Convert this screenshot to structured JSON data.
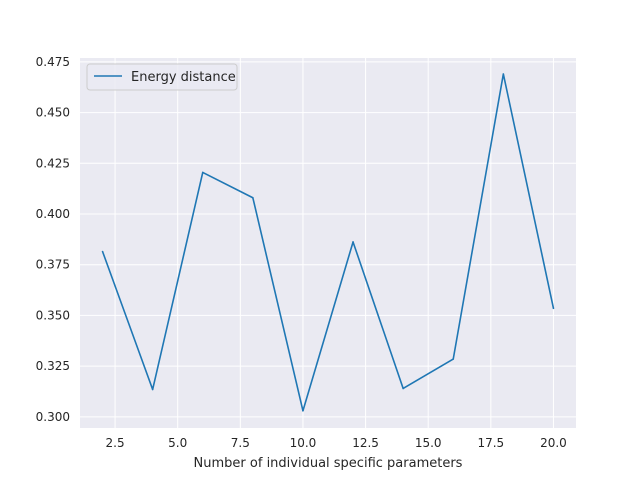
{
  "chart_data": {
    "type": "line",
    "title": "",
    "xlabel": "Number of individual specific parameters",
    "ylabel": "",
    "xlim": [
      1.1,
      20.9
    ],
    "ylim": [
      0.2945,
      0.4769
    ],
    "x_ticks": [
      2.5,
      5.0,
      7.5,
      10.0,
      12.5,
      15.0,
      17.5,
      20.0
    ],
    "x_tick_labels": [
      "2.5",
      "5.0",
      "7.5",
      "10.0",
      "12.5",
      "15.0",
      "17.5",
      "20.0"
    ],
    "y_ticks": [
      0.3,
      0.325,
      0.35,
      0.375,
      0.4,
      0.425,
      0.45,
      0.475
    ],
    "y_tick_labels": [
      "0.300",
      "0.325",
      "0.350",
      "0.375",
      "0.400",
      "0.425",
      "0.450",
      "0.475"
    ],
    "grid": true,
    "legend_position": "top-left",
    "series": [
      {
        "name": "Energy distance",
        "color": "#1f77b4",
        "x": [
          2,
          4,
          6,
          8,
          10,
          12,
          14,
          16,
          18,
          20
        ],
        "y": [
          0.3815,
          0.3135,
          0.4205,
          0.408,
          0.303,
          0.3862,
          0.314,
          0.3285,
          0.469,
          0.3535
        ]
      }
    ],
    "colors": {
      "plot_background": "#eaeaf2",
      "grid": "#ffffff",
      "text": "#262626"
    }
  }
}
